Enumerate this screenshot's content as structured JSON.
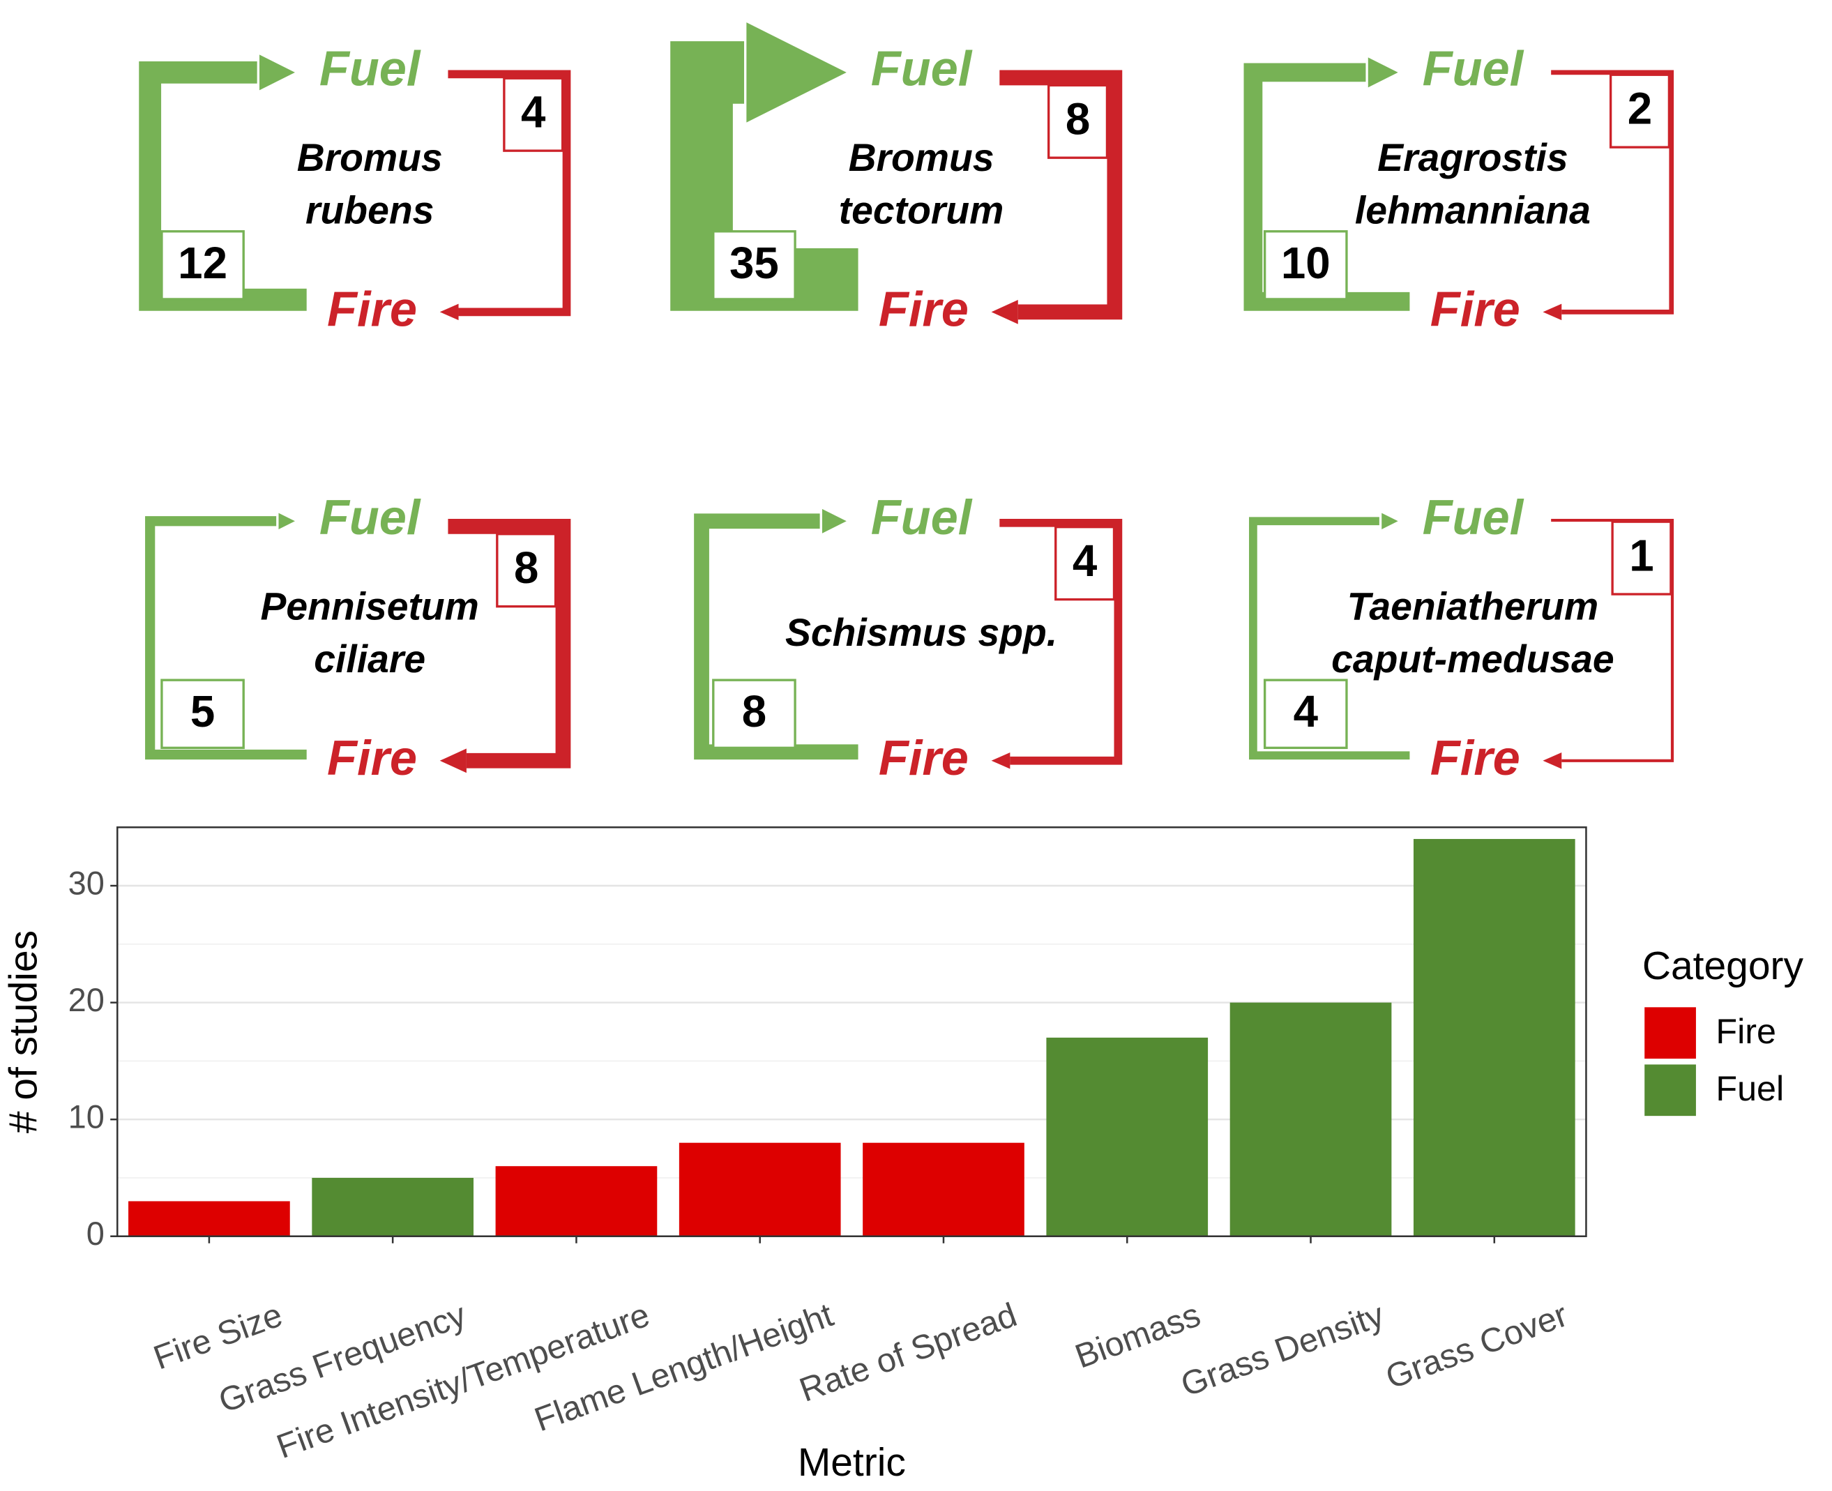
{
  "diagrams": [
    {
      "species": [
        "Bromus",
        "rubens"
      ],
      "fire_to_fuel": 12,
      "fuel_to_fire": 4
    },
    {
      "species": [
        "Bromus",
        "tectorum"
      ],
      "fire_to_fuel": 35,
      "fuel_to_fire": 8
    },
    {
      "species": [
        "Eragrostis",
        "lehmanniana"
      ],
      "fire_to_fuel": 10,
      "fuel_to_fire": 2
    },
    {
      "species": [
        "Pennisetum",
        "ciliare"
      ],
      "fire_to_fuel": 5,
      "fuel_to_fire": 8
    },
    {
      "species": [
        "Schismus spp."
      ],
      "fire_to_fuel": 8,
      "fuel_to_fire": 4
    },
    {
      "species": [
        "Taeniatherum",
        "caput-medusae"
      ],
      "fire_to_fuel": 4,
      "fuel_to_fire": 1
    }
  ],
  "fuel_label": "Fuel",
  "fire_label": "Fire",
  "fuel_color": "#77b255",
  "fire_color": "#cc2229",
  "chart_data": {
    "type": "bar",
    "x_label": "Metric",
    "y_label": "# of studies",
    "categories": [
      "Fire Size",
      "Grass Frequency",
      "Fire Intensity/Temperature",
      "Flame Length/Height",
      "Rate of Spread",
      "Biomass",
      "Grass Density",
      "Grass Cover"
    ],
    "series": [
      {
        "name": "Fire",
        "color": "#dd0000",
        "values": [
          3,
          null,
          6,
          8,
          8,
          null,
          null,
          null
        ]
      },
      {
        "name": "Fuel",
        "color": "#548b32",
        "values": [
          null,
          5,
          null,
          null,
          null,
          17,
          20,
          34
        ]
      }
    ],
    "ylim": [
      0,
      35
    ],
    "yticks": [
      0,
      10,
      20,
      30
    ],
    "grid": true,
    "legend_title": "Category",
    "legend": "right"
  }
}
